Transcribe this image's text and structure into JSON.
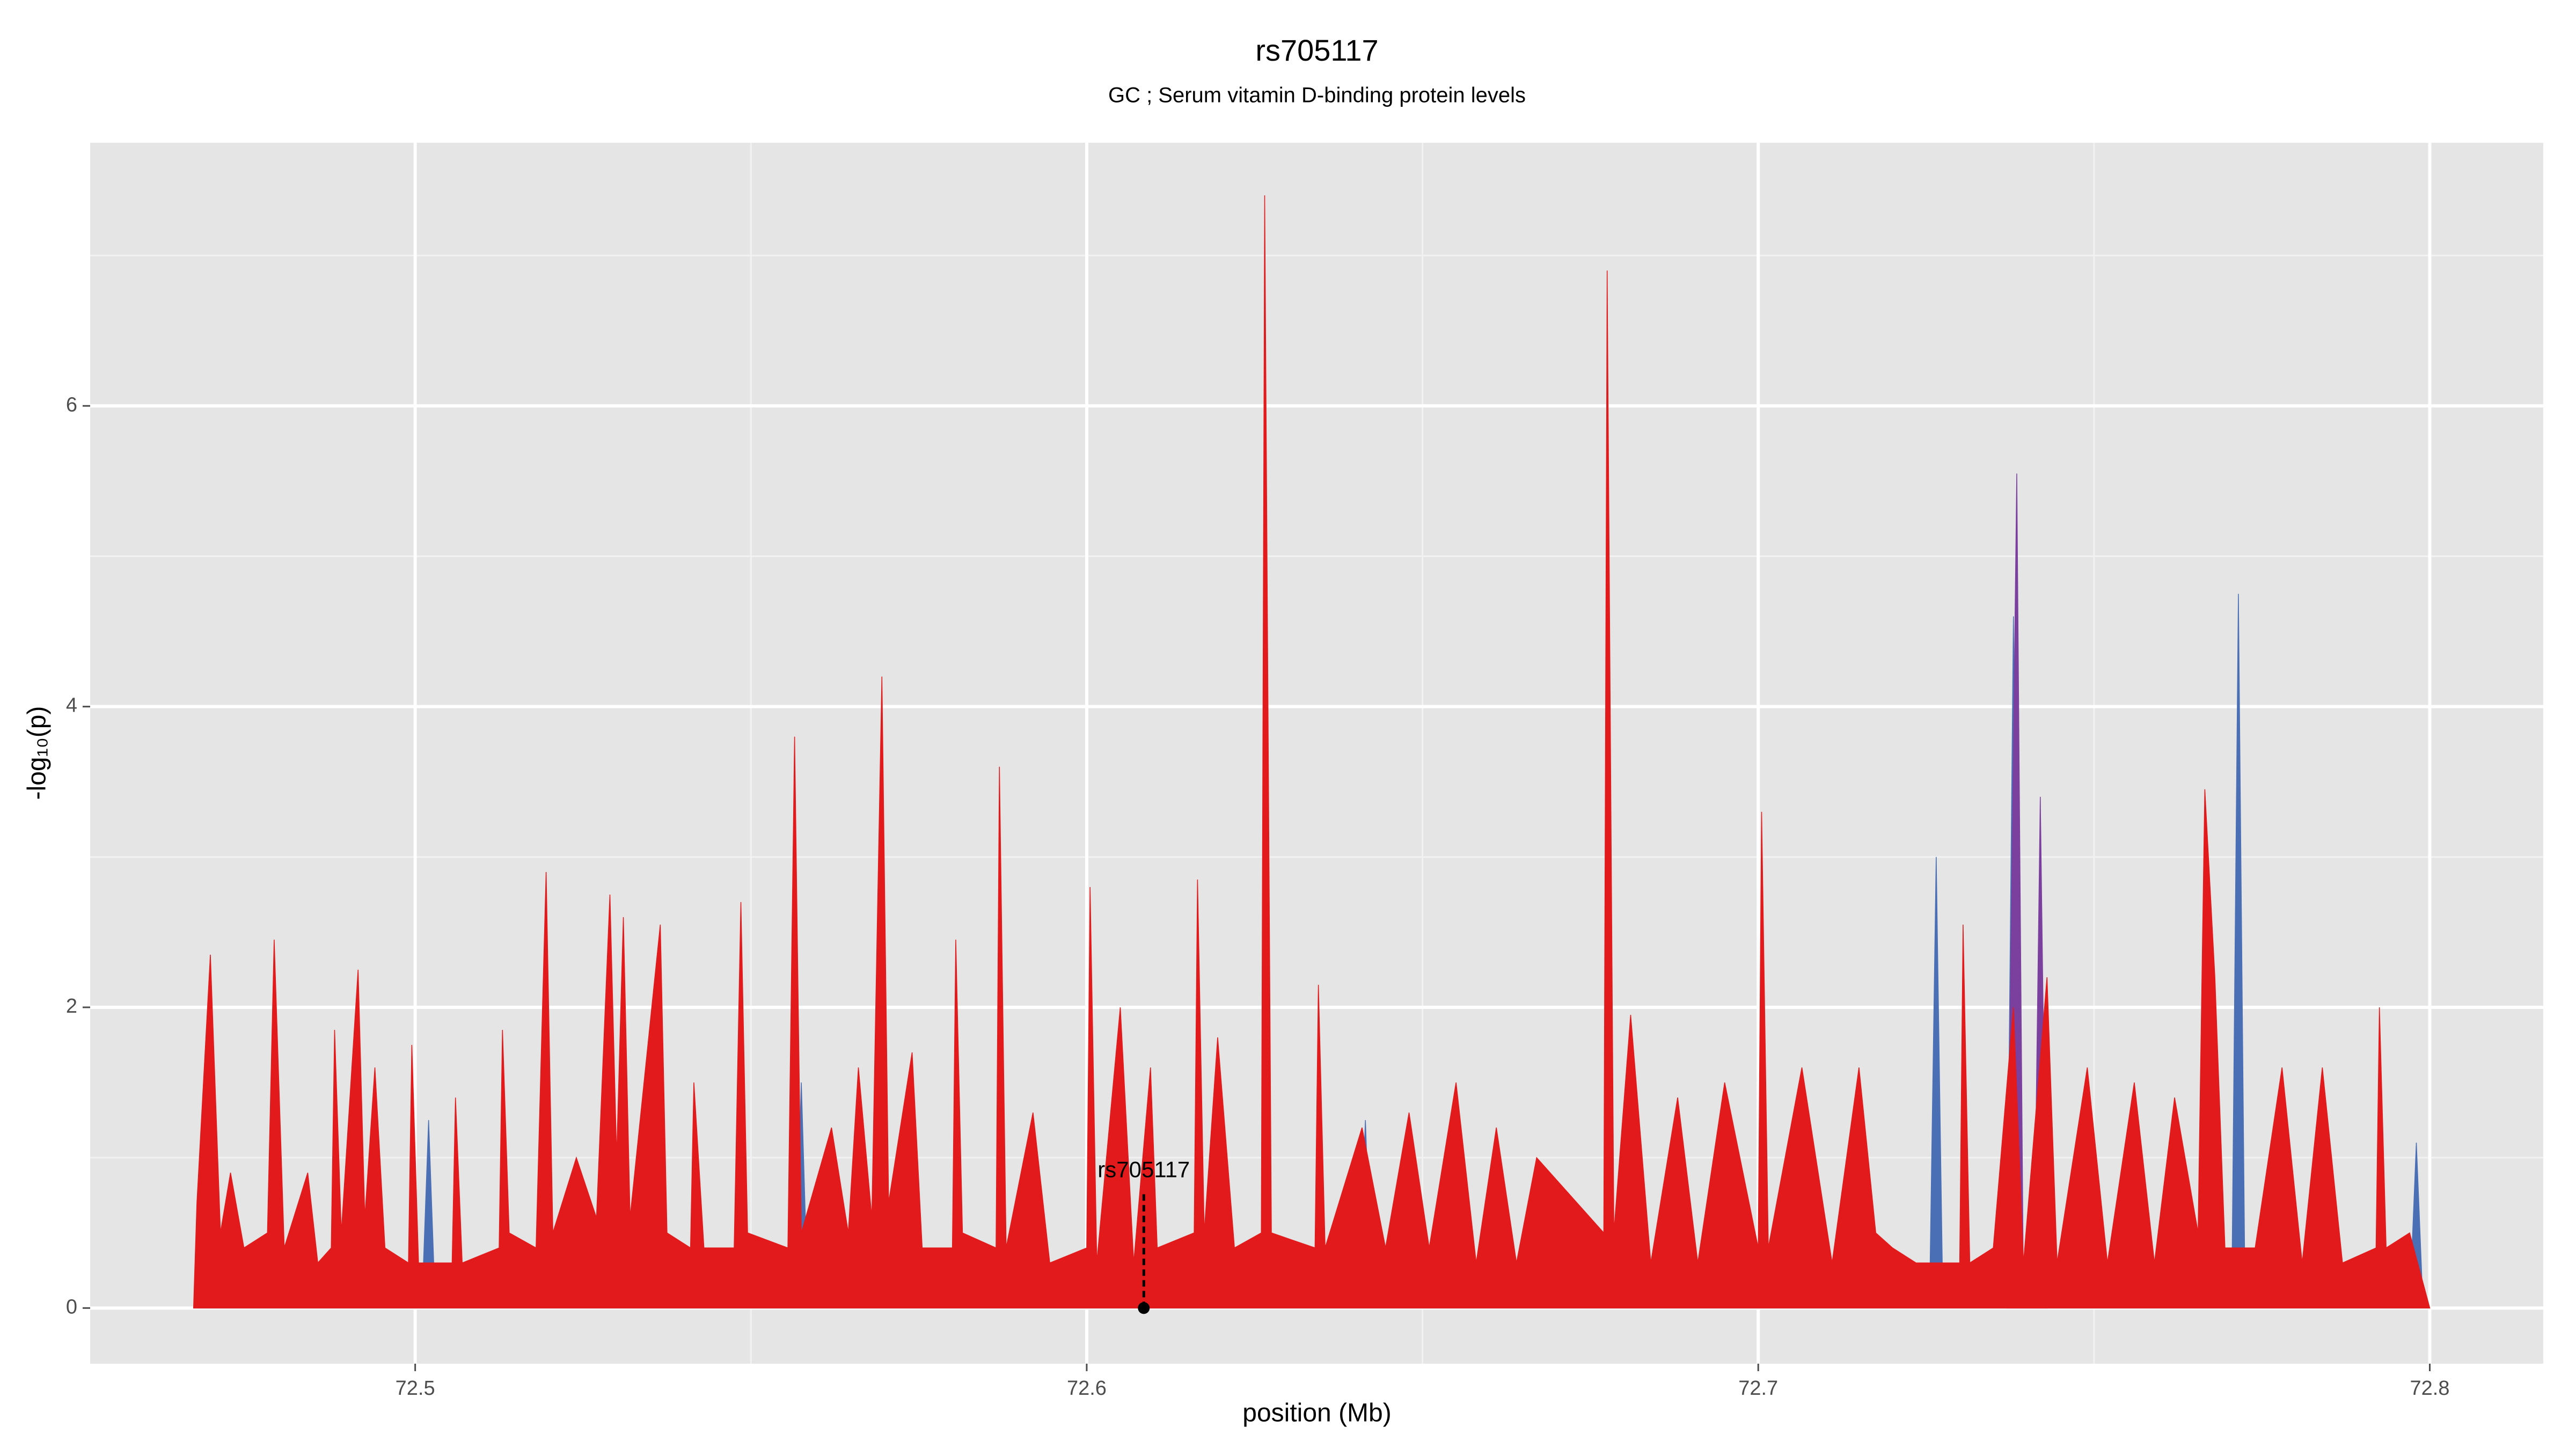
{
  "chart_data": {
    "type": "area",
    "title": "rs705117",
    "subtitle": "GC ; Serum vitamin D-binding protein levels",
    "x_label": "position (Mb)",
    "y_label": "-log₁₀(p)",
    "xlim": [
      72.4516,
      72.8169
    ],
    "ylim": [
      -0.37,
      7.75
    ],
    "xticks": [
      72.5,
      72.6,
      72.7,
      72.8
    ],
    "yticks": [
      0,
      2,
      4,
      6
    ],
    "grid": true,
    "annotation": {
      "label": "rs705117",
      "x": 72.6085,
      "y": 0
    },
    "series": [
      {
        "name": "blue",
        "color": "#4a6fb5",
        "x": [
          72.467,
          72.501,
          72.502,
          72.503,
          72.5565,
          72.5575,
          72.5585,
          72.6085,
          72.6095,
          72.6105,
          72.6405,
          72.6415,
          72.6425,
          72.7255,
          72.7265,
          72.7275,
          72.737,
          72.738,
          72.739,
          72.7705,
          72.7715,
          72.7725,
          72.797,
          72.798,
          72.799,
          72.8
        ],
        "values": [
          0,
          0,
          1.25,
          0,
          0,
          1.5,
          0,
          0,
          1.5,
          0,
          0,
          1.25,
          0,
          0,
          3.0,
          0,
          0,
          4.6,
          0,
          0,
          4.75,
          0,
          0,
          1.1,
          0,
          0
        ]
      },
      {
        "name": "purple",
        "color": "#7b3f9e",
        "x": [
          72.737,
          72.7385,
          72.7395,
          72.741,
          72.742,
          72.743
        ],
        "values": [
          0,
          5.55,
          0,
          0,
          3.4,
          0
        ]
      },
      {
        "name": "red",
        "color": "#e31a1c",
        "x": [
          72.467,
          72.4675,
          72.4695,
          72.471,
          72.4725,
          72.4745,
          72.478,
          72.479,
          72.4805,
          72.484,
          72.4855,
          72.4875,
          72.488,
          72.489,
          72.4915,
          72.4925,
          72.494,
          72.4955,
          72.499,
          72.4995,
          72.5005,
          72.5055,
          72.506,
          72.507,
          72.5125,
          72.513,
          72.514,
          72.518,
          72.5195,
          72.5205,
          72.524,
          72.527,
          72.529,
          72.53,
          72.531,
          72.532,
          72.535,
          72.5365,
          72.5375,
          72.541,
          72.5415,
          72.543,
          72.5475,
          72.5485,
          72.5495,
          72.5555,
          72.5565,
          72.5575,
          72.562,
          72.5645,
          72.566,
          72.568,
          72.5695,
          72.5705,
          72.574,
          72.5755,
          72.58,
          72.5805,
          72.5815,
          72.5865,
          72.587,
          72.588,
          72.592,
          72.5945,
          72.6,
          72.6005,
          72.6015,
          72.605,
          72.607,
          72.6095,
          72.6105,
          72.616,
          72.6165,
          72.6175,
          72.6195,
          72.622,
          72.626,
          72.6265,
          72.6275,
          72.634,
          72.6345,
          72.6355,
          72.641,
          72.6445,
          72.648,
          72.651,
          72.655,
          72.658,
          72.661,
          72.664,
          72.667,
          72.677,
          72.6775,
          72.6785,
          72.681,
          72.684,
          72.688,
          72.691,
          72.695,
          72.7,
          72.7005,
          72.7015,
          72.7065,
          72.711,
          72.715,
          72.7175,
          72.72,
          72.7235,
          72.73,
          72.7305,
          72.7315,
          72.735,
          72.738,
          72.7395,
          72.743,
          72.7445,
          72.749,
          72.752,
          72.756,
          72.759,
          72.762,
          72.7655,
          72.7665,
          72.768,
          72.7695,
          72.774,
          72.778,
          72.781,
          72.784,
          72.787,
          72.792,
          72.7925,
          72.7935,
          72.797,
          72.8
        ],
        "values": [
          0,
          0.7,
          2.35,
          0.5,
          0.9,
          0.4,
          0.5,
          2.45,
          0.4,
          0.9,
          0.3,
          0.4,
          1.85,
          0.5,
          2.25,
          0.6,
          1.6,
          0.4,
          0.3,
          1.75,
          0.3,
          0.3,
          1.4,
          0.3,
          0.4,
          1.85,
          0.5,
          0.4,
          2.9,
          0.5,
          1.0,
          0.6,
          2.75,
          1.0,
          2.6,
          0.6,
          1.9,
          2.55,
          0.5,
          0.4,
          1.5,
          0.4,
          0.4,
          2.7,
          0.5,
          0.4,
          3.8,
          0.5,
          1.2,
          0.5,
          1.6,
          0.6,
          4.2,
          0.7,
          1.7,
          0.4,
          0.4,
          2.45,
          0.5,
          0.4,
          3.6,
          0.4,
          1.3,
          0.3,
          0.4,
          2.8,
          0.3,
          2.0,
          0.3,
          1.6,
          0.4,
          0.5,
          2.85,
          0.5,
          1.8,
          0.4,
          0.5,
          7.4,
          0.5,
          0.4,
          2.15,
          0.4,
          1.2,
          0.4,
          1.3,
          0.4,
          1.5,
          0.3,
          1.2,
          0.3,
          1.0,
          0.5,
          6.9,
          0.5,
          1.95,
          0.3,
          1.4,
          0.3,
          1.5,
          0.4,
          3.3,
          0.4,
          1.6,
          0.3,
          1.6,
          0.5,
          0.4,
          0.3,
          0.3,
          2.55,
          0.3,
          0.4,
          2.0,
          0.3,
          2.2,
          0.3,
          1.6,
          0.3,
          1.5,
          0.3,
          1.4,
          0.5,
          3.45,
          2.2,
          0.4,
          0.4,
          1.6,
          0.3,
          1.6,
          0.3,
          0.4,
          2.0,
          0.4,
          0.5,
          0
        ]
      }
    ]
  }
}
